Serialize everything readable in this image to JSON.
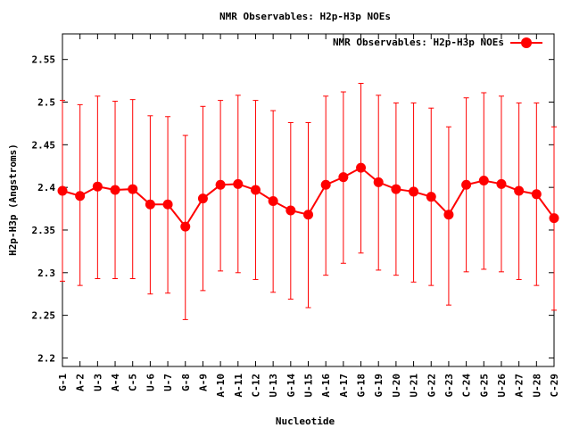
{
  "chart_data": {
    "type": "line",
    "title": "NMR Observables: H2p-H3p NOEs",
    "xlabel": "Nucleotide",
    "ylabel": "H2p-H3p (Angstroms)",
    "ylim": [
      2.19,
      2.58
    ],
    "yticks": [
      2.2,
      2.25,
      2.3,
      2.35,
      2.4,
      2.45,
      2.5,
      2.55
    ],
    "ytick_labels": [
      "2.2",
      "2.25",
      "2.3",
      "2.35",
      "2.4",
      "2.45",
      "2.5",
      "2.55"
    ],
    "grid": false,
    "legend_position": "top-right",
    "categories": [
      "G-1",
      "A-2",
      "U-3",
      "A-4",
      "C-5",
      "U-6",
      "U-7",
      "G-8",
      "A-9",
      "A-10",
      "A-11",
      "C-12",
      "U-13",
      "G-14",
      "U-15",
      "A-16",
      "A-17",
      "G-18",
      "G-19",
      "U-20",
      "U-21",
      "G-22",
      "G-23",
      "C-24",
      "G-25",
      "U-26",
      "A-27",
      "U-28",
      "C-29"
    ],
    "series": [
      {
        "name": "NMR Observables: H2p-H3p NOEs",
        "color": "#ff0000",
        "values": [
          2.396,
          2.39,
          2.401,
          2.397,
          2.398,
          2.38,
          2.38,
          2.354,
          2.387,
          2.403,
          2.404,
          2.397,
          2.384,
          2.373,
          2.368,
          2.403,
          2.412,
          2.423,
          2.406,
          2.398,
          2.395,
          2.389,
          2.368,
          2.403,
          2.408,
          2.404,
          2.396,
          2.392,
          2.364
        ],
        "err_low": [
          2.29,
          2.285,
          2.293,
          2.293,
          2.293,
          2.275,
          2.276,
          2.245,
          2.279,
          2.302,
          2.3,
          2.292,
          2.277,
          2.269,
          2.259,
          2.297,
          2.311,
          2.323,
          2.303,
          2.297,
          2.289,
          2.285,
          2.262,
          2.301,
          2.304,
          2.301,
          2.292,
          2.285,
          2.256
        ],
        "err_high": [
          2.502,
          2.497,
          2.507,
          2.501,
          2.503,
          2.484,
          2.483,
          2.461,
          2.495,
          2.502,
          2.508,
          2.502,
          2.49,
          2.476,
          2.476,
          2.507,
          2.512,
          2.522,
          2.508,
          2.499,
          2.499,
          2.493,
          2.471,
          2.505,
          2.511,
          2.507,
          2.499,
          2.499,
          2.471
        ]
      }
    ]
  }
}
